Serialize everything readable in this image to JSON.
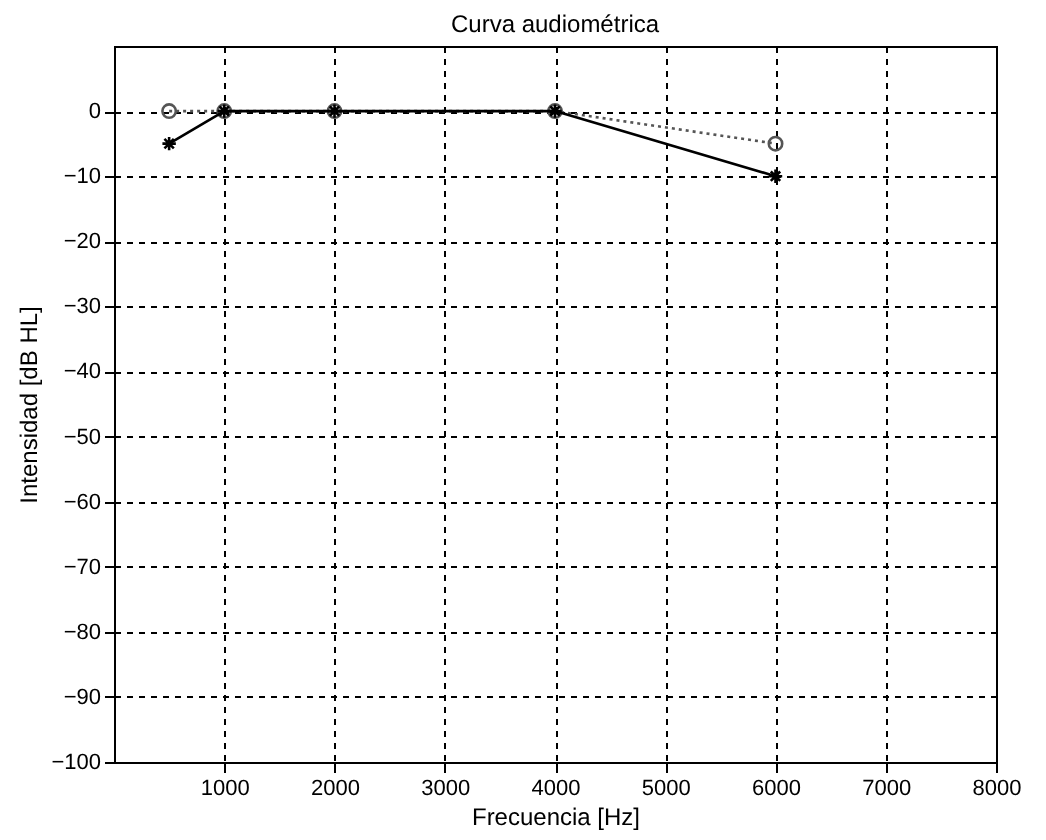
{
  "chart_data": {
    "type": "line",
    "title": "Curva audiométrica",
    "xlabel": "Frecuencia [Hz]",
    "ylabel": "Intensidad [dB HL]",
    "x": [
      500,
      1000,
      2000,
      4000,
      6000
    ],
    "series": [
      {
        "color": "#555555",
        "values": [
          0,
          0,
          0,
          0,
          -5
        ],
        "marker": "circle",
        "line_style": "dotted"
      },
      {
        "color": "#000000",
        "values": [
          -5,
          0,
          0,
          0,
          -10
        ],
        "marker": "cross",
        "line_style": "solid"
      }
    ],
    "xlim": [
      0,
      8000
    ],
    "xticks": [
      1000,
      2000,
      3000,
      4000,
      5000,
      6000,
      7000,
      8000
    ],
    "ylim": [
      -100,
      10
    ],
    "yticks": [
      0,
      -10,
      -20,
      -30,
      -40,
      -50,
      -60,
      -70,
      -80,
      -90,
      -100
    ],
    "grid": true
  }
}
